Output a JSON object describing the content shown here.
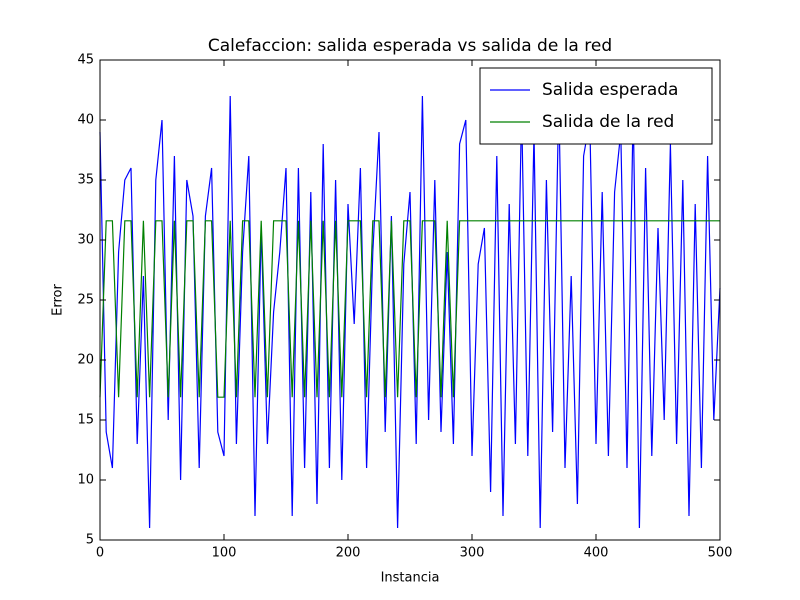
{
  "chart_data": {
    "type": "line",
    "title": "Calefaccion: salida esperada vs salida de la red",
    "x_label": "Instancia",
    "y_label": "Error",
    "x": [
      0,
      5,
      10,
      15,
      20,
      25,
      30,
      35,
      40,
      45,
      50,
      55,
      60,
      65,
      70,
      75,
      80,
      85,
      90,
      95,
      100,
      105,
      110,
      115,
      120,
      125,
      130,
      135,
      140,
      145,
      150,
      155,
      160,
      165,
      170,
      175,
      180,
      185,
      190,
      195,
      200,
      205,
      210,
      215,
      220,
      225,
      230,
      235,
      240,
      245,
      250,
      255,
      260,
      265,
      270,
      275,
      280,
      285,
      290,
      295,
      300,
      305,
      310,
      315,
      320,
      325,
      330,
      335,
      340,
      345,
      350,
      355,
      360,
      365,
      370,
      375,
      380,
      385,
      390,
      395,
      400,
      405,
      410,
      415,
      420,
      425,
      430,
      435,
      440,
      445,
      450,
      455,
      460,
      465,
      470,
      475,
      480,
      485,
      490,
      495,
      500
    ],
    "series": [
      {
        "name": "Salida esperada",
        "color": "#0000ff",
        "values": [
          39,
          14,
          11,
          29,
          35,
          36,
          13,
          27,
          6,
          35,
          40,
          15,
          37,
          10,
          35,
          32,
          11,
          32,
          36,
          14,
          12,
          42,
          13,
          29,
          37,
          7,
          31,
          13,
          24,
          29,
          36,
          7,
          36,
          11,
          34,
          8,
          38,
          11,
          35,
          10,
          33,
          23,
          36,
          11,
          29,
          39,
          14,
          32,
          6,
          28,
          34,
          13,
          42,
          15,
          35,
          14,
          29,
          13,
          38,
          40,
          12,
          28,
          31,
          9,
          37,
          7,
          33,
          13,
          41,
          12,
          39,
          6,
          35,
          14,
          42,
          11,
          27,
          8,
          37,
          40,
          13,
          34,
          12,
          34,
          39,
          11,
          41,
          6,
          36,
          12,
          31,
          15,
          38,
          13,
          35,
          7,
          33,
          11,
          37,
          15,
          26
        ]
      },
      {
        "name": "Salida de la red",
        "color": "#008000",
        "values": [
          16.9,
          31.6,
          31.6,
          16.9,
          31.6,
          31.6,
          16.9,
          31.6,
          16.9,
          31.6,
          31.6,
          16.9,
          31.6,
          16.9,
          31.6,
          31.6,
          16.9,
          31.6,
          31.6,
          16.9,
          16.9,
          31.6,
          16.9,
          31.6,
          31.6,
          16.9,
          31.6,
          16.9,
          31.6,
          31.6,
          31.6,
          16.9,
          31.6,
          16.9,
          31.6,
          16.9,
          31.6,
          16.9,
          31.6,
          16.9,
          31.6,
          31.6,
          31.6,
          16.9,
          31.6,
          31.6,
          16.9,
          31.6,
          16.9,
          31.6,
          31.6,
          16.9,
          31.6,
          31.6,
          31.6,
          16.9,
          31.6,
          16.9,
          31.6,
          31.6,
          31.6,
          31.6,
          31.6,
          31.6,
          31.6,
          31.6,
          31.6,
          31.6,
          31.6,
          31.6,
          31.6,
          31.6,
          31.6,
          31.6,
          31.6,
          31.6,
          31.6,
          31.6,
          31.6,
          31.6,
          31.6,
          31.6,
          31.6,
          31.6,
          31.6,
          31.6,
          31.6,
          31.6,
          31.6,
          31.6,
          31.6,
          31.6,
          31.6,
          31.6,
          31.6,
          31.6,
          31.6,
          31.6,
          31.6,
          31.6,
          31.6
        ]
      }
    ],
    "xlim": [
      0,
      500
    ],
    "xticks": [
      0,
      100,
      200,
      300,
      400,
      500
    ],
    "ylim": [
      5,
      45
    ],
    "yticks": [
      5,
      10,
      15,
      20,
      25,
      30,
      35,
      40,
      45
    ],
    "grid": false,
    "legend_position": "upper-right"
  }
}
